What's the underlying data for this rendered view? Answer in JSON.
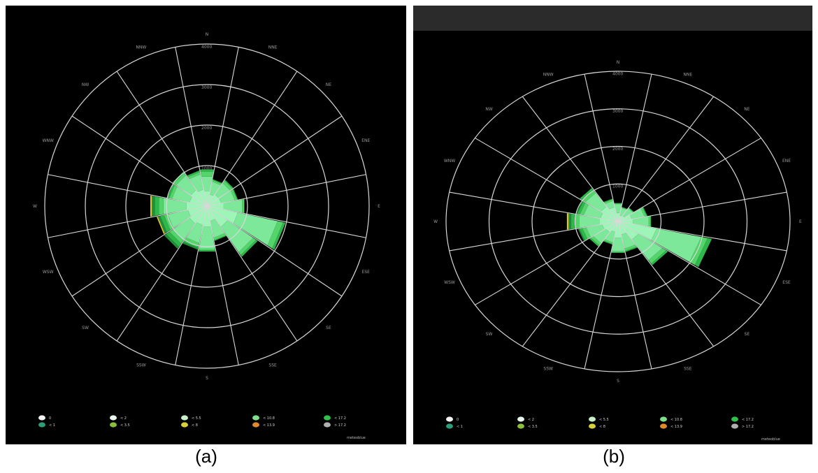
{
  "chart_data": [
    {
      "type": "windrose",
      "panel": "a",
      "directions": [
        "N",
        "NNE",
        "NE",
        "ENE",
        "E",
        "ESE",
        "SE",
        "SSE",
        "S",
        "SSW",
        "SW",
        "WSW",
        "W",
        "WNW",
        "NW",
        "NNW"
      ],
      "ring_labels": [
        "1000",
        "2000",
        "3000",
        "4000"
      ],
      "colors": [
        "#9df5b8",
        "#7de89a",
        "#56d46c",
        "#2eb84c",
        "#1f8f3a",
        "#d8c73a"
      ],
      "petals": [
        [
          380,
          740,
          860,
          920,
          0,
          0
        ],
        [
          300,
          620,
          660,
          680,
          0,
          0
        ],
        [
          350,
          690,
          760,
          790,
          0,
          0
        ],
        [
          360,
          700,
          760,
          780,
          0,
          0
        ],
        [
          420,
          880,
          930,
          940,
          0,
          0
        ],
        [
          780,
          1780,
          1920,
          1980,
          0,
          0
        ],
        [
          620,
          1380,
          1470,
          1520,
          0,
          0
        ],
        [
          380,
          800,
          860,
          880,
          0,
          0
        ],
        [
          520,
          1060,
          1110,
          1140,
          0,
          0
        ],
        [
          480,
          930,
          1010,
          1060,
          1100,
          0
        ],
        [
          520,
          1030,
          1120,
          1220,
          1280,
          0
        ],
        [
          480,
          990,
          1080,
          1180,
          1240,
          1270
        ],
        [
          520,
          1090,
          1200,
          1310,
          1380,
          1420
        ],
        [
          440,
          880,
          950,
          1000,
          0,
          0
        ],
        [
          480,
          920,
          990,
          1030,
          0,
          0
        ],
        [
          420,
          800,
          860,
          900,
          0,
          0
        ]
      ],
      "legend_items": [
        "0",
        "< 1",
        "< 2",
        "< 3.5",
        "< 5.5",
        "< 8",
        "< 10.8",
        "< 13.9",
        "< 17.2",
        "> 17.2"
      ],
      "brand": "meteoblue"
    },
    {
      "type": "windrose",
      "panel": "b",
      "directions": [
        "N",
        "NNE",
        "NE",
        "ENE",
        "E",
        "ESE",
        "SE",
        "SSE",
        "S",
        "SSW",
        "SW",
        "WSW",
        "W",
        "WNW",
        "NW",
        "NNW"
      ],
      "ring_labels": [
        "1000",
        "2000",
        "3000",
        "4000"
      ],
      "colors": [
        "#9df5b8",
        "#7de89a",
        "#56d46c",
        "#2eb84c",
        "#1f8f3a",
        "#d8c73a"
      ],
      "petals": [
        [
          230,
          470,
          490,
          500,
          0,
          0
        ],
        [
          170,
          370,
          390,
          400,
          0,
          0
        ],
        [
          190,
          420,
          440,
          450,
          0,
          0
        ],
        [
          330,
          630,
          680,
          700,
          0,
          0
        ],
        [
          360,
          720,
          760,
          780,
          0,
          0
        ],
        [
          920,
          1980,
          2130,
          2230,
          0,
          0
        ],
        [
          580,
          1250,
          1360,
          1410,
          0,
          0
        ],
        [
          360,
          740,
          800,
          830,
          0,
          0
        ],
        [
          450,
          810,
          840,
          850,
          0,
          0
        ],
        [
          290,
          570,
          610,
          630,
          0,
          0
        ],
        [
          350,
          700,
          770,
          810,
          0,
          0
        ],
        [
          380,
          760,
          850,
          920,
          950,
          0
        ],
        [
          430,
          910,
          1020,
          1110,
          1170,
          1210
        ],
        [
          420,
          820,
          910,
          970,
          1000,
          0
        ],
        [
          480,
          920,
          1020,
          1080,
          0,
          0
        ],
        [
          390,
          560,
          600,
          620,
          0,
          0
        ]
      ],
      "legend_items": [
        "0",
        "< 1",
        "< 2",
        "< 3.5",
        "< 5.5",
        "< 8",
        "< 10.8",
        "< 13.9",
        "< 17.2",
        "> 17.2"
      ],
      "brand": "meteoblue"
    }
  ],
  "captions": {
    "a": "(a)",
    "b": "(b)"
  }
}
